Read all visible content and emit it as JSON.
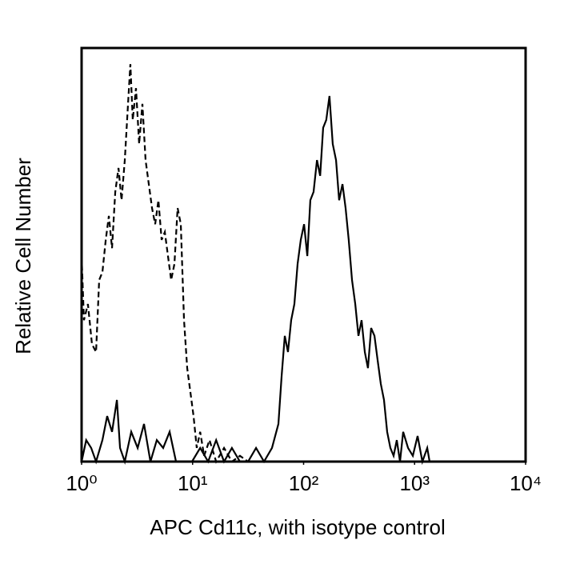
{
  "chart_data": {
    "type": "line",
    "x_label": "APC Cd11c, with isotype control",
    "y_label": "Relative Cell Number",
    "xscale": "log",
    "xlim": [
      1,
      10000
    ],
    "ylim": [
      0,
      100
    ],
    "xticks": [
      {
        "value": 1,
        "label": "10⁰"
      },
      {
        "value": 10,
        "label": "10¹"
      },
      {
        "value": 100,
        "label": "10²"
      },
      {
        "value": 1000,
        "label": "10³"
      },
      {
        "value": 10000,
        "label": "10⁴"
      }
    ],
    "grid": false,
    "series": [
      {
        "color": "#000000",
        "dashed": true,
        "x": [
          1,
          1.05,
          1.14,
          1.24,
          1.35,
          1.44,
          1.54,
          1.65,
          1.76,
          1.88,
          2.01,
          2.15,
          2.29,
          2.45,
          2.62,
          2.75,
          2.89,
          3.09,
          3.3,
          3.53,
          3.77,
          4.03,
          4.31,
          4.6,
          4.92,
          5.26,
          5.62,
          6.0,
          6.41,
          6.86,
          7.33,
          7.83,
          8.37,
          8.94,
          9.55,
          10.2,
          10.9,
          11.7,
          12.7,
          14.2,
          16.3,
          19.2,
          22.6,
          26.7,
          31.6
        ],
        "values": [
          49.7,
          34.2,
          38.1,
          28.4,
          26.5,
          43.9,
          45.8,
          53.6,
          59.4,
          51.6,
          65.2,
          71.0,
          63.2,
          72.9,
          86.5,
          96.1,
          82.6,
          90.3,
          76.8,
          86.5,
          72.9,
          67.1,
          61.3,
          57.4,
          63.2,
          53.6,
          55.5,
          49.7,
          43.9,
          47.8,
          61.3,
          57.4,
          34.2,
          22.6,
          16.8,
          11.0,
          3.3,
          7.2,
          1.4,
          5.2,
          0,
          3.3,
          0,
          1.4,
          0
        ]
      },
      {
        "color": "#000000",
        "dashed": false,
        "x": [
          1,
          1.1,
          1.22,
          1.35,
          1.54,
          1.7,
          1.88,
          2.08,
          2.22,
          2.45,
          2.8,
          3.2,
          3.65,
          4.17,
          4.76,
          5.43,
          6.21,
          7.09,
          8.37,
          9.88,
          11.7,
          13.8,
          16.3,
          19.2,
          22.6,
          26.7,
          31.6,
          37.3,
          44.0,
          51.9,
          59.3,
          63.4,
          67.7,
          72.3,
          77.3,
          82.6,
          88.3,
          94.3,
          101,
          108,
          115,
          123,
          132,
          141,
          150,
          160,
          171,
          183,
          196,
          209,
          224,
          239,
          255,
          273,
          292,
          312,
          333,
          356,
          380,
          406,
          435,
          464,
          496,
          530,
          566,
          605,
          647,
          691,
          739,
          789,
          873,
          964,
          1064,
          1175,
          1300,
          1365
        ],
        "values": [
          0,
          5.2,
          3.3,
          0,
          5.2,
          11.0,
          7.2,
          14.9,
          3.3,
          0,
          7.2,
          3.3,
          9.1,
          0,
          5.2,
          3.3,
          7.2,
          0,
          0,
          0,
          3.3,
          0,
          5.2,
          0,
          3.3,
          0,
          0,
          3.3,
          0,
          3.3,
          9.1,
          20.7,
          30.4,
          26.5,
          34.2,
          38.1,
          47.8,
          53.6,
          57.4,
          49.7,
          63.2,
          65.2,
          72.9,
          69.1,
          80.7,
          82.6,
          88.4,
          76.8,
          72.9,
          63.2,
          67.1,
          61.3,
          53.6,
          43.9,
          38.1,
          30.4,
          34.2,
          26.5,
          22.6,
          32.3,
          30.4,
          24.6,
          18.8,
          14.9,
          7.2,
          3.3,
          1.4,
          5.2,
          0,
          7.2,
          3.3,
          1.4,
          6.2,
          0,
          3.3,
          0
        ]
      }
    ]
  }
}
